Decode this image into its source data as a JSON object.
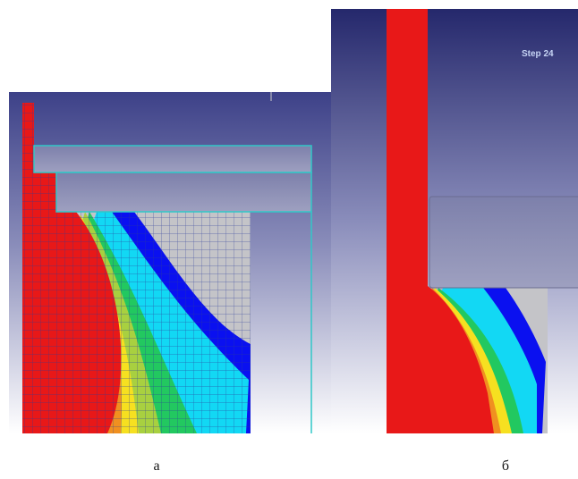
{
  "panels": [
    {
      "label": "а"
    },
    {
      "label": "б",
      "step_label": "Step 24"
    }
  ]
}
